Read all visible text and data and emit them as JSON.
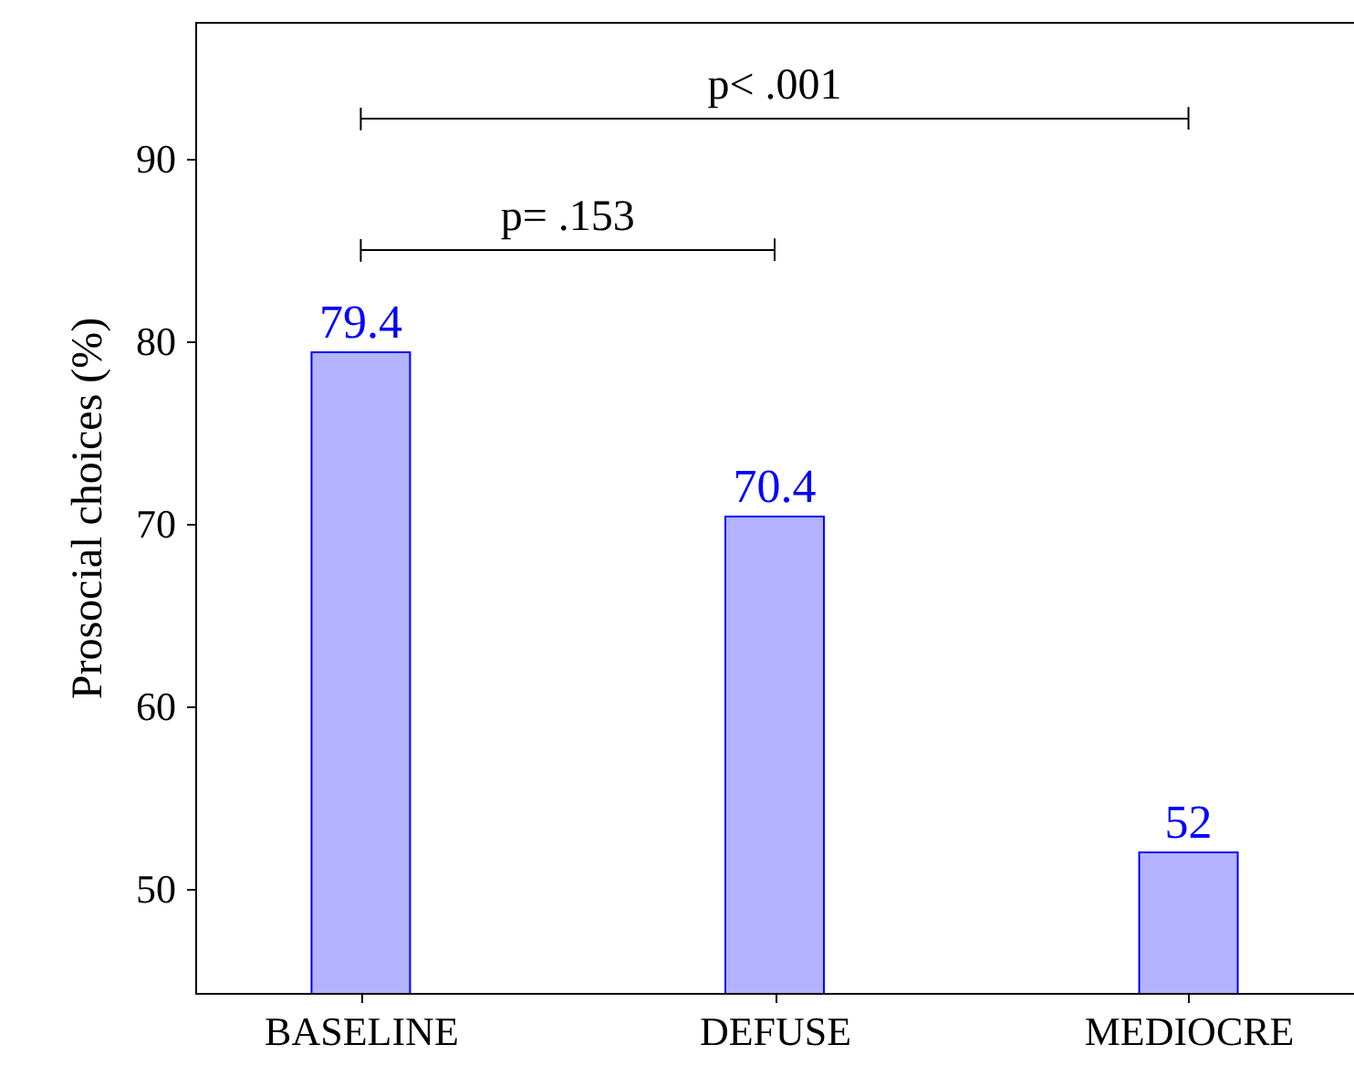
{
  "chart_data": {
    "type": "bar",
    "ylabel": "Prosocial choices (%)",
    "categories": [
      "BASELINE",
      "DEFUSE",
      "MEDIOCRE"
    ],
    "values": [
      79.4,
      70.4,
      52
    ],
    "color": "#b3b3ff",
    "data_labels": true,
    "ylim": [
      44.3,
      97.5
    ],
    "yticks": [
      50,
      60,
      70,
      80,
      90
    ],
    "grid": false,
    "annotations": [
      "p= .153",
      "p< .001"
    ]
  }
}
